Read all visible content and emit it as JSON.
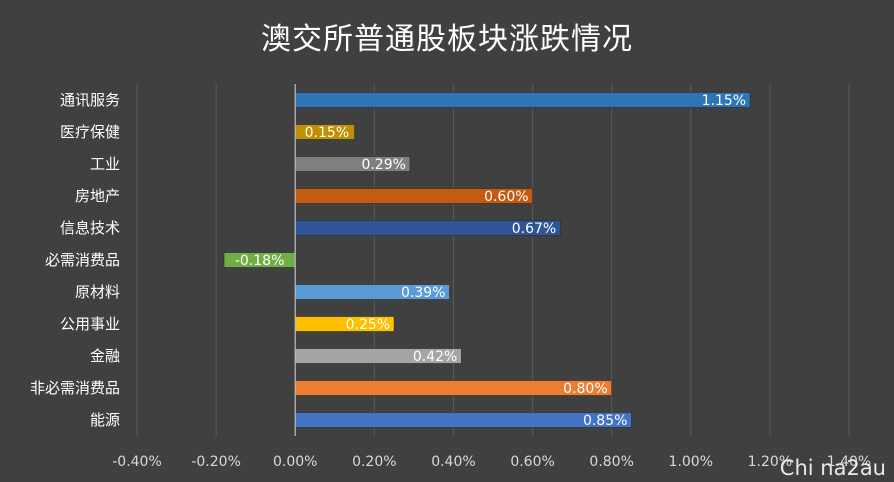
{
  "chart_data": {
    "type": "bar",
    "orientation": "horizontal",
    "title": "澳交所普通股板块涨跌情况",
    "categories": [
      "通讯服务",
      "医疗保健",
      "工业",
      "房地产",
      "信息技术",
      "必需消费品",
      "原材料",
      "公用事业",
      "金融",
      "非必需消费品",
      "能源"
    ],
    "values": [
      1.15,
      0.15,
      0.29,
      0.6,
      0.67,
      -0.18,
      0.39,
      0.25,
      0.42,
      0.8,
      0.85
    ],
    "data_labels": [
      "1.15%",
      "0.15%",
      "0.29%",
      "0.60%",
      "0.67%",
      "-0.18%",
      "0.39%",
      "0.25%",
      "0.42%",
      "0.80%",
      "0.85%"
    ],
    "bar_colors": [
      "#2E75B6",
      "#BF9000",
      "#7F7F7F",
      "#C55A11",
      "#2F5597",
      "#70AD47",
      "#5B9BD5",
      "#FFC000",
      "#A5A5A5",
      "#ED7D31",
      "#4472C4"
    ],
    "xlim": [
      -0.4,
      1.4
    ],
    "x_ticks": [
      -0.4,
      -0.2,
      0.0,
      0.2,
      0.4,
      0.6,
      0.8,
      1.0,
      1.2,
      1.4
    ],
    "x_tick_labels": [
      "-0.40%",
      "-0.20%",
      "0.00%",
      "0.20%",
      "0.40%",
      "0.60%",
      "0.80%",
      "1.00%",
      "1.20%",
      "1.40%"
    ],
    "grid": "vertical",
    "legend": "none"
  },
  "watermark": "Chi na2au"
}
